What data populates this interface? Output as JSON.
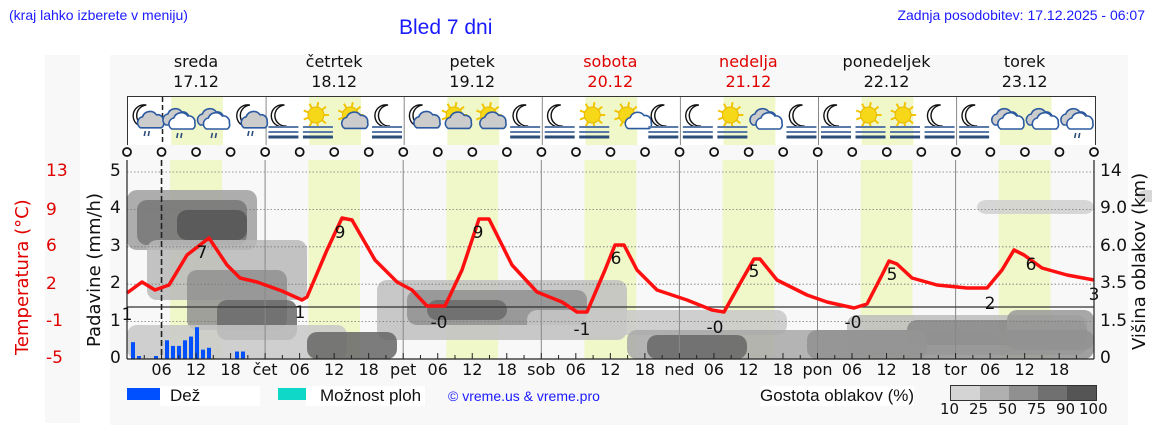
{
  "header": {
    "region_note": "(kraj lahko izberete v meniju)",
    "title": "Bled 7 dni",
    "updated": "Zadnja posodobitev: 17.12.2025 - 06:07"
  },
  "days": [
    {
      "name": "sreda",
      "date": "17.12",
      "weekend": false
    },
    {
      "name": "četrtek",
      "date": "18.12",
      "weekend": false
    },
    {
      "name": "petek",
      "date": "19.12",
      "weekend": false
    },
    {
      "name": "sobota",
      "date": "20.12",
      "weekend": true
    },
    {
      "name": "nedelja",
      "date": "21.12",
      "weekend": true
    },
    {
      "name": "ponedeljek",
      "date": "22.12",
      "weekend": false
    },
    {
      "name": "torek",
      "date": "23.12",
      "weekend": false
    }
  ],
  "weather_icons": [
    "moon-cloud-rain",
    "cloud-rain",
    "cloud-rain",
    "moon-cloud-rain",
    "moon-fog",
    "sun-fog",
    "sun-cloud",
    "moon-fog",
    "moon-cloud",
    "sun-cloud",
    "sun-cloud",
    "moon-fog",
    "moon-fog",
    "sun-fog",
    "sun-cloud-small",
    "moon-fog",
    "moon-fog",
    "sun-fog",
    "cloud",
    "moon-fog",
    "moon-fog",
    "sun-fog",
    "sun-fog",
    "moon-fog",
    "moon-fog",
    "cloud",
    "cloud",
    "cloud-rain"
  ],
  "axes": {
    "temperature_label": "Temperatura (°C)",
    "temperature_ticks": [
      "13",
      "9",
      "6",
      "2",
      "-1",
      "-5"
    ],
    "precip_label": "Padavine (mm/h)",
    "precip_ticks": [
      "5",
      "4",
      "3",
      "2",
      "1",
      "0"
    ],
    "cloud_height_label": "Višina oblakov (km)",
    "cloud_height_ticks": [
      "14",
      "9.0",
      "6.0",
      "3.5",
      "1.5",
      "0"
    ],
    "x_ticks": [
      "06",
      "12",
      "18",
      "čet",
      "06",
      "12",
      "18",
      "pet",
      "06",
      "12",
      "18",
      "sob",
      "06",
      "12",
      "18",
      "ned",
      "06",
      "12",
      "18",
      "pon",
      "06",
      "12",
      "18",
      "tor",
      "06",
      "12",
      "18"
    ]
  },
  "legend": {
    "rain_label": "Dež",
    "rain_color": "#0050ff",
    "storm_label": "Možnost ploh",
    "storm_color": "#10d8c8",
    "credit": "© vreme.us & vreme.pro",
    "cloud_density_label": "Gostota oblakov (%)",
    "cloud_density_ticks": [
      "10",
      "25",
      "50",
      "75",
      "90",
      "100"
    ],
    "cloud_density_colors": [
      "#d4d4d4",
      "#b0b0b0",
      "#909090",
      "#707070",
      "#555555"
    ]
  },
  "chart_data": {
    "type": "line",
    "title": "Bled 7 dni",
    "xlabel": "",
    "ylabel": "Temperatura (°C)",
    "ylim": [
      -5,
      13
    ],
    "x": [
      "17.12 00",
      "17.12 06",
      "17.12 12",
      "17.12 18",
      "18.12 00",
      "18.12 06",
      "18.12 12",
      "18.12 18",
      "19.12 00",
      "19.12 06",
      "19.12 12",
      "19.12 18",
      "20.12 00",
      "20.12 06",
      "20.12 12",
      "20.12 18",
      "21.12 00",
      "21.12 06",
      "21.12 12",
      "21.12 18",
      "22.12 00",
      "22.12 06",
      "22.12 12",
      "22.12 18",
      "23.12 00",
      "23.12 06",
      "23.12 12",
      "23.12 18"
    ],
    "series": [
      {
        "name": "Temperatura (°C)",
        "color": "#ff0000",
        "values": [
          1.5,
          1.5,
          7,
          4,
          3,
          1,
          9,
          4,
          1.5,
          0,
          9,
          3,
          0.5,
          -1,
          6,
          3,
          1,
          0,
          5,
          2.5,
          1,
          0,
          5,
          2.5,
          2,
          2,
          6,
          3
        ]
      },
      {
        "name": "Dež (mm/h)",
        "color": "#0050ff",
        "values": [
          0.45,
          0.05,
          0.6,
          0.35,
          0.2,
          0,
          0,
          0,
          0,
          0,
          0,
          0,
          0,
          0,
          0,
          0,
          0,
          0,
          0,
          0,
          0,
          0,
          0,
          0,
          0,
          0,
          0,
          0
        ]
      }
    ],
    "annotations": {
      "temp_max": [
        {
          "day": "17.12",
          "value": 7
        },
        {
          "day": "18.12",
          "value": 9
        },
        {
          "day": "19.12",
          "value": 9
        },
        {
          "day": "20.12",
          "value": 6
        },
        {
          "day": "21.12",
          "value": 5
        },
        {
          "day": "22.12",
          "value": 5
        },
        {
          "day": "23.12",
          "value": 6
        }
      ],
      "temp_min": [
        {
          "day": "17.12",
          "value": 1
        },
        {
          "day": "18.12",
          "value": 1
        },
        {
          "day": "19.12",
          "value": 0
        },
        {
          "day": "20.12",
          "value": -1
        },
        {
          "day": "21.12",
          "value": 0
        },
        {
          "day": "22.12",
          "value": 0
        },
        {
          "day": "23.12",
          "value": 2
        },
        {
          "day": "24.12",
          "value": 3
        }
      ]
    },
    "secondary_axes": {
      "precip_mm_h": [
        0,
        5
      ],
      "cloud_height_km_ticks": [
        0,
        1.5,
        3.5,
        6.0,
        9.0,
        14
      ]
    },
    "grid": true
  }
}
